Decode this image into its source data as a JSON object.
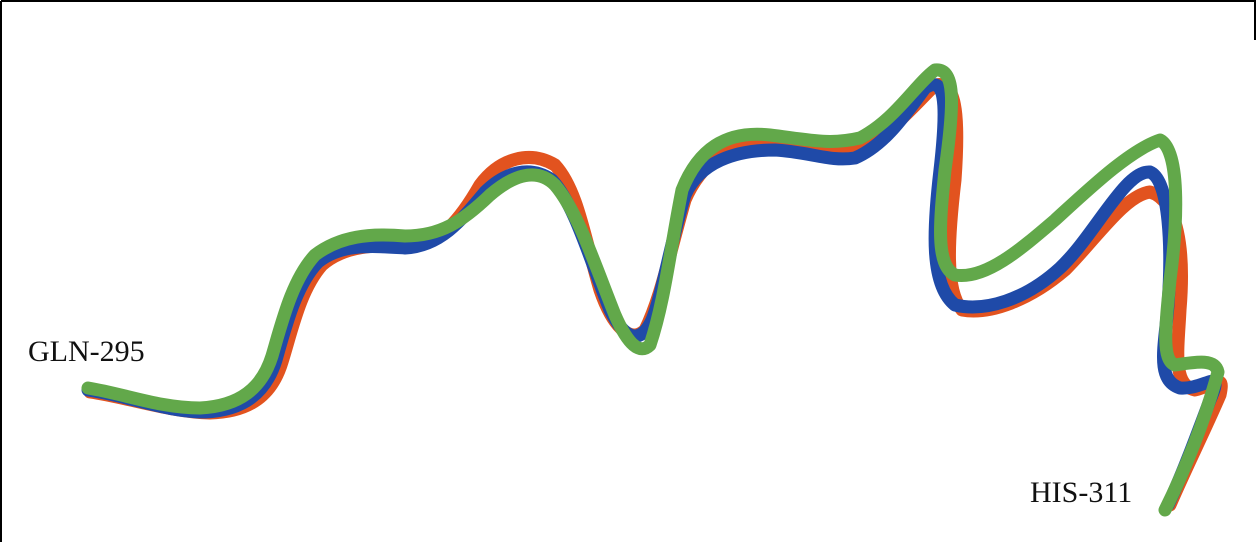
{
  "labels": {
    "start": "GLN-295",
    "end": "HIS-311"
  }
}
